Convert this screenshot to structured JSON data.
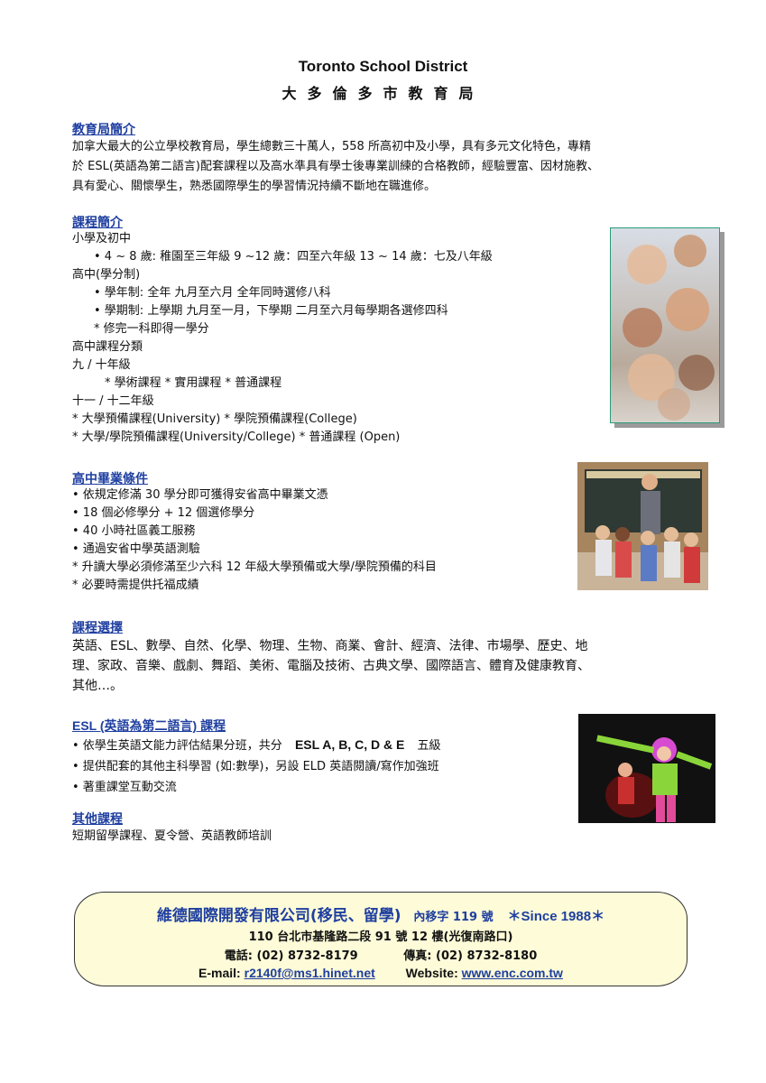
{
  "header": {
    "title_en": "Toronto School District",
    "title_zh": "大多倫多市教育局"
  },
  "intro": {
    "heading": "教育局簡介",
    "lines": [
      "加拿大最大的公立學校教育局，學生總數三十萬人，558 所高初中及小學，具有多元文化特色，專精",
      "於 ESL(英語為第二語言)配套課程以及高水準具有學士後專業訓練的合格教師，經驗豐富、因材施教、",
      "具有愛心、關懷學生，熟悉國際學生的學習情況持續不斷地在職進修。"
    ]
  },
  "courses": {
    "heading": "課程簡介",
    "lines": [
      "小學及初中",
      "•    4 ~ 8 歲: 稚園至三年級    9 ~12 歲：四至六年級    13 ~ 14 歲：七及八年級",
      "高中(學分制)",
      "•    學年制: 全年      九月至六月      全年同時選修八科",
      "•    學期制: 上學期     九月至一月，下學期     二月至六月每學期各選修四科",
      "*   修完一科即得一學分",
      "高中課程分類",
      "九 / 十年級",
      "* 學術課程       * 實用課程       * 普通課程",
      "十一 / 十二年級",
      "* 大學預備課程(University)   * 學院預備課程(College)",
      "* 大學/學院預備課程(University/College)        * 普通課程 (Open)"
    ]
  },
  "graduation": {
    "heading": "高中畢業條件",
    "lines": [
      "•    依規定修滿 30 學分即可獲得安省高中畢業文憑",
      "•    18 個必修學分 + 12 個選修學分",
      "•    40 小時社區義工服務",
      "•    通過安省中學英語測驗",
      "*    升讀大學必須修滿至少六科 12 年級大學預備或大學/學院預備的科目",
      "*    必要時需提供托福成績"
    ]
  },
  "electives": {
    "heading": "課程選擇",
    "lines": [
      "英語、ESL、數學、自然、化學、物理、生物、商業、會計、經濟、法律、市場學、歷史、地",
      "理、家政、音樂、戲劇、舞蹈、美術、電腦及技術、古典文學、國際語言、體育及健康教育、",
      "其他…。"
    ]
  },
  "esl": {
    "heading": "ESL (英語為第二語言) 課程",
    "line1_pre": "• 依學生英語文能力評估結果分班，共分",
    "line1_bold": "ESL A, B, C, D & E",
    "line1_post": "五級",
    "line2": "• 提供配套的其他主科學習 (如:數學)，另設 ELD 英語閱讀/寫作加強班",
    "line3": "• 著重課堂互動交流"
  },
  "other": {
    "heading": "其他課程",
    "line": "短期留學課程、夏令營、英語教師培訓"
  },
  "footer": {
    "company": "維德國際開發有限公司(移民、留學)",
    "license": "內移字 119 號",
    "since": "＊Since 1988＊",
    "address": "110 台北市基隆路二段 91 號 12 樓(光復南路口)",
    "phone_label": "電話:",
    "phone": "(02) 8732-8179",
    "fax_label": "傳真:",
    "fax": "(02) 8732-8180",
    "email_label": "E-mail:",
    "email": "r2140f@ms1.hinet.net",
    "website_label": "Website:",
    "website": "www.enc.com.tw"
  },
  "colors": {
    "heading": "#1f3fa0",
    "footer_bg": "#fdfbd8",
    "company_red": "#1f3fa0"
  }
}
